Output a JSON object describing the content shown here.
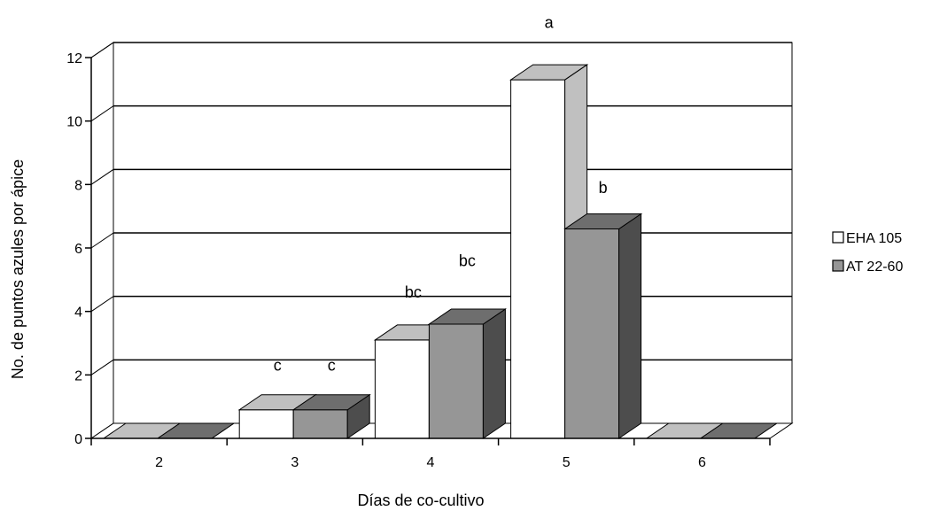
{
  "chart_data": {
    "type": "bar",
    "title": "",
    "xlabel": "Días de co-cultivo",
    "ylabel": "No. de puntos azules por  ápice",
    "categories": [
      "2",
      "3",
      "4",
      "5",
      "6"
    ],
    "series": [
      {
        "name": "EHA 105",
        "values": [
          0,
          0.9,
          3.1,
          11.3,
          0
        ],
        "color": "#ffffff",
        "side_color": "#c0c0c0",
        "top_color": "#c0c0c0"
      },
      {
        "name": "AT 22-60",
        "values": [
          0,
          0.9,
          3.6,
          6.6,
          0
        ],
        "color": "#969696",
        "side_color": "#4d4d4d",
        "top_color": "#6e6e6e"
      }
    ],
    "ylim": [
      0,
      12
    ],
    "yticks": [
      "0",
      "2",
      "4",
      "6",
      "8",
      "10",
      "12"
    ],
    "grid": true,
    "legend_position": "right",
    "annotations": [
      {
        "text": "c",
        "category": "3",
        "series": 0,
        "value": 2.3
      },
      {
        "text": "c",
        "category": "3",
        "series": 1,
        "value": 2.3
      },
      {
        "text": "bc",
        "category": "4",
        "series": 0,
        "value": 4.6
      },
      {
        "text": "bc",
        "category": "4",
        "series": 1,
        "value": 5.6
      },
      {
        "text": "a",
        "category": "5",
        "series": 0,
        "value": 13.1
      },
      {
        "text": "b",
        "category": "5",
        "series": 1,
        "value": 7.9
      }
    ]
  }
}
